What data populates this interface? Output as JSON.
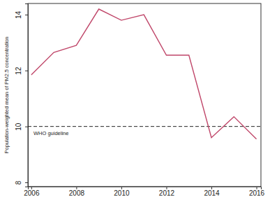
{
  "chart_data": {
    "type": "line",
    "y_label": "Population-weighted mean of PM2.5 concentration",
    "x": [
      2006,
      2007,
      2008,
      2009,
      2010,
      2011,
      2012,
      2013,
      2014,
      2015,
      2016
    ],
    "series": [
      {
        "color": "#c0476a",
        "values": [
          11.85,
          12.65,
          12.9,
          14.2,
          13.8,
          14.0,
          12.55,
          12.55,
          9.6,
          10.35,
          9.55
        ]
      }
    ],
    "xlim": [
      2005.85,
      2016.2
    ],
    "xticks": [
      2006,
      2008,
      2010,
      2012,
      2014,
      2016
    ],
    "ylim": [
      7.85,
      14.4
    ],
    "yticks": [
      8,
      10,
      12,
      14
    ],
    "grid": false,
    "annotations": [
      {
        "text": "WHO guideline",
        "y": 10,
        "line_style": "dashed"
      }
    ]
  }
}
